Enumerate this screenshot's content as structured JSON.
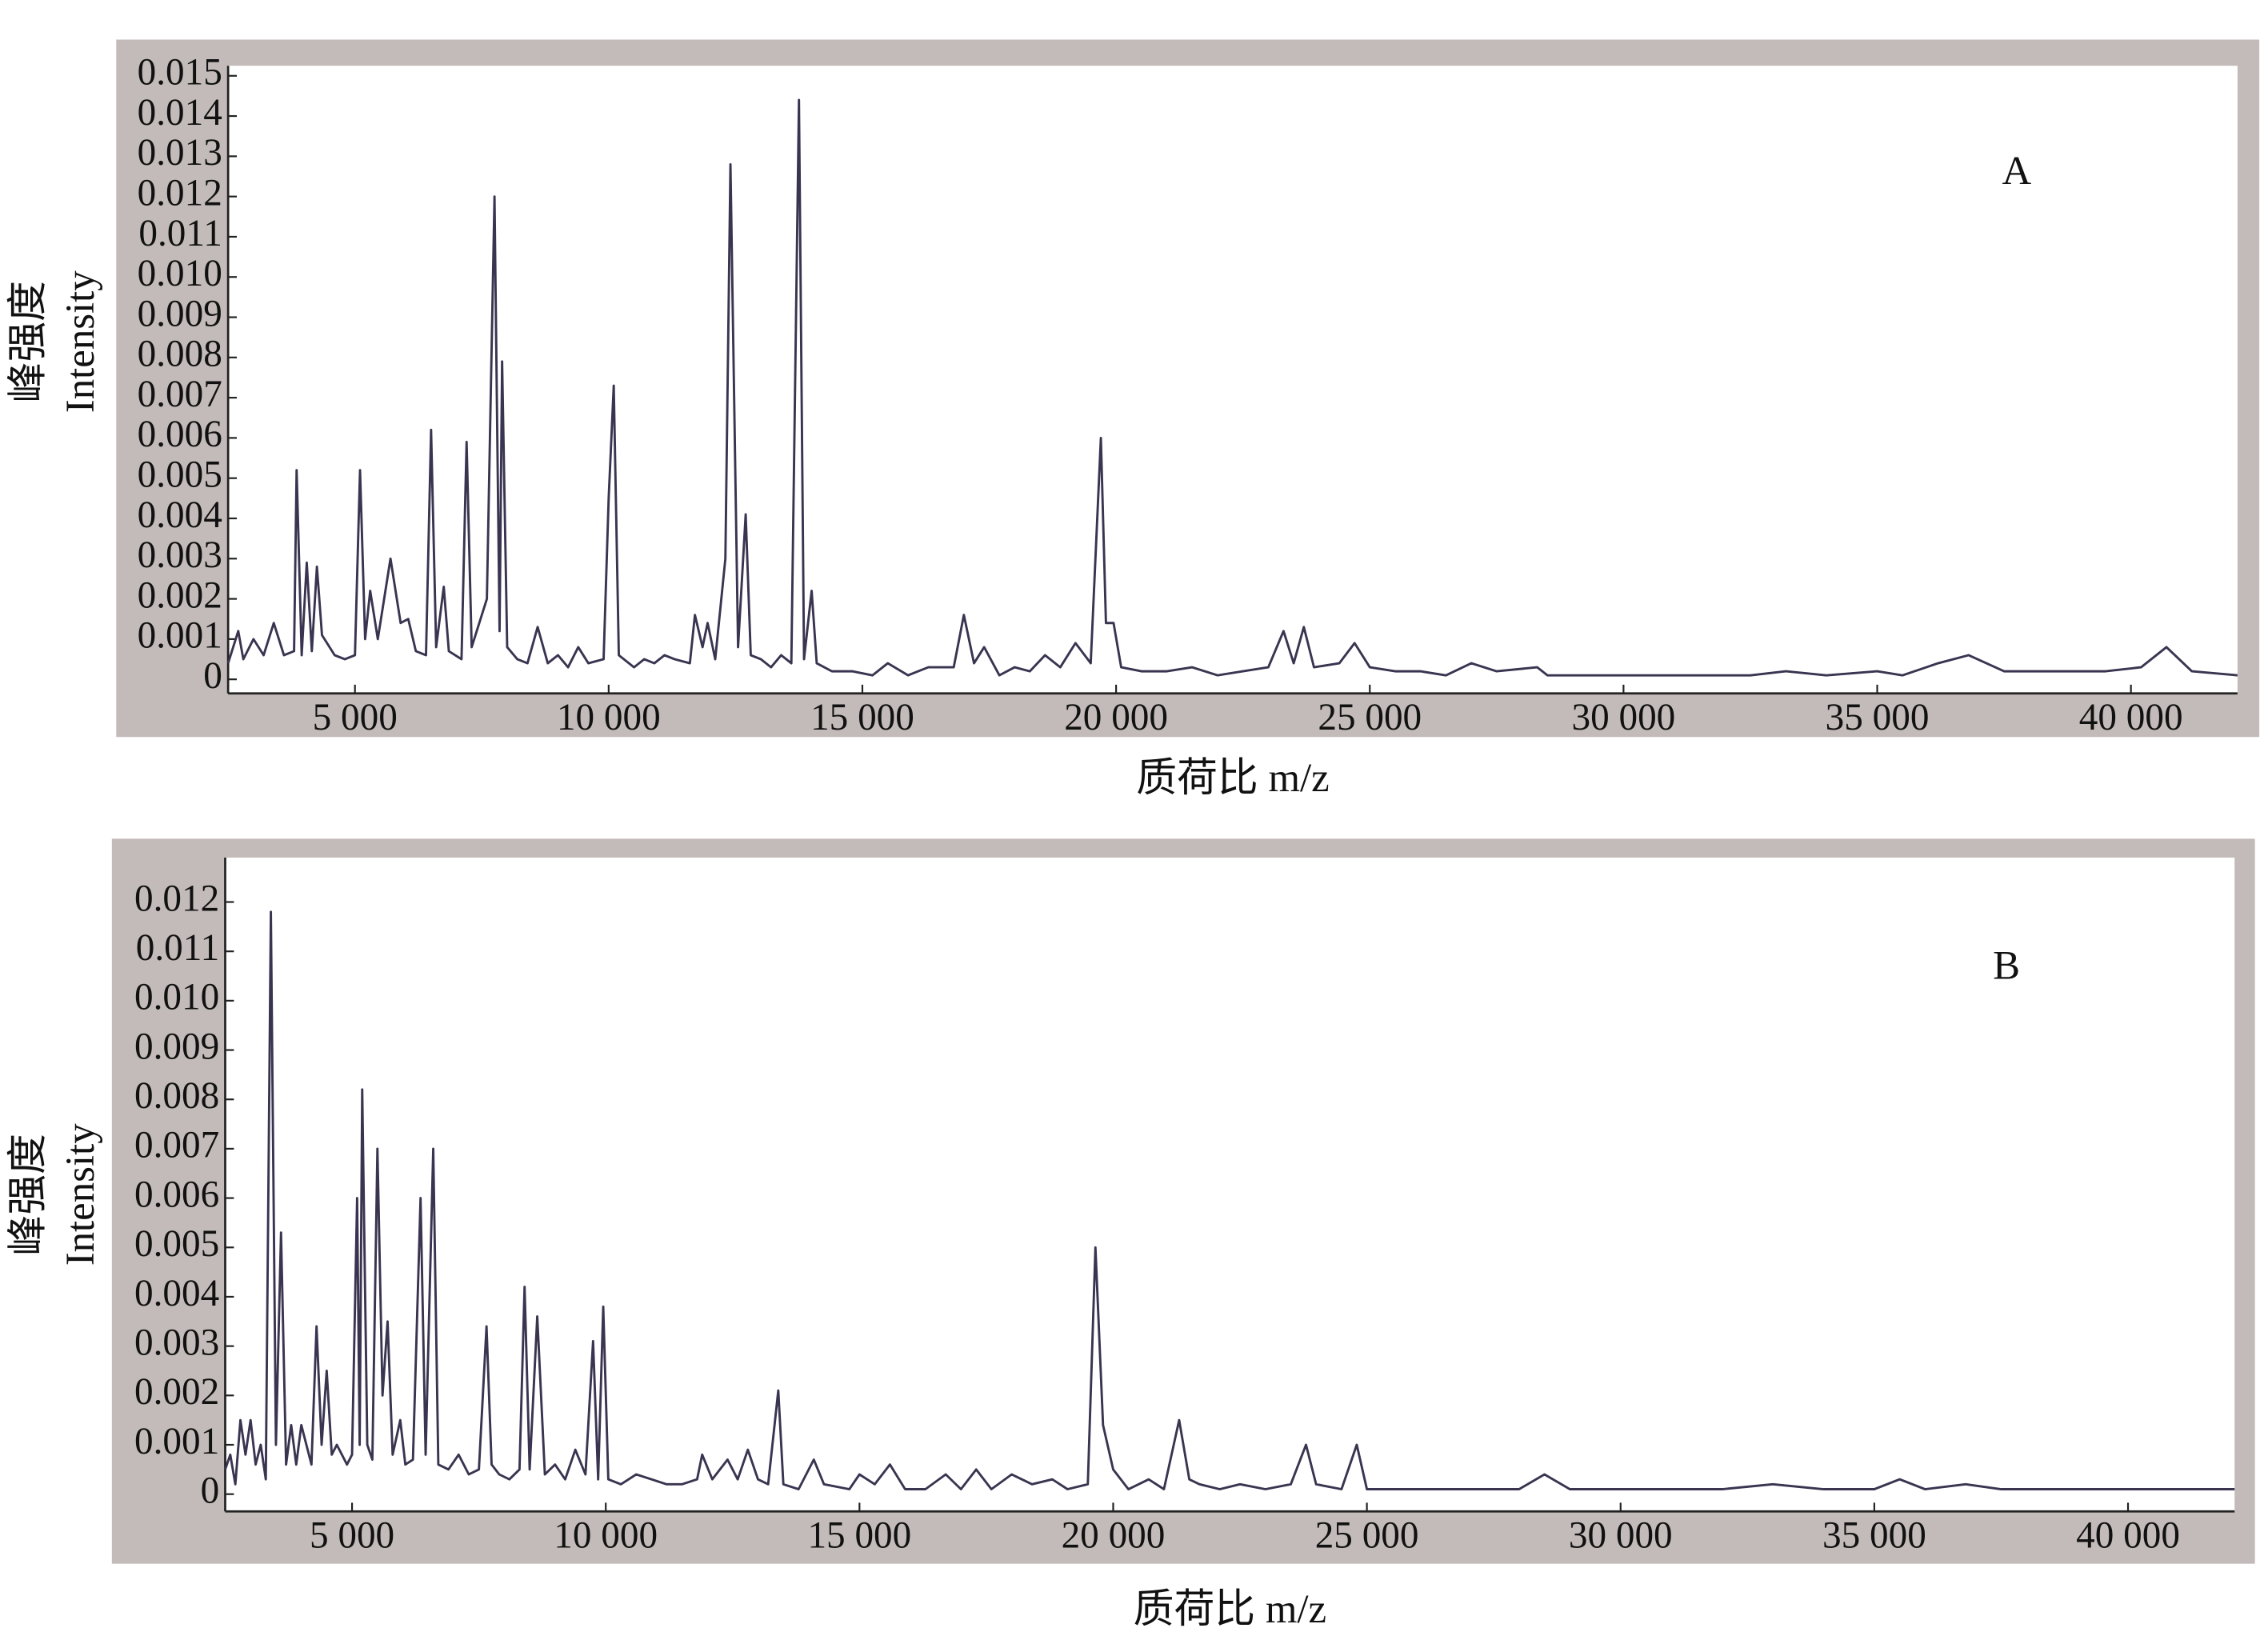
{
  "chart_data": [
    {
      "type": "line",
      "panel_label": "A",
      "ylabel_cn": "峰强度",
      "ylabel": "Intensity",
      "xlabel": "质荷比 m/z",
      "color": "#3a3450",
      "xlim": [
        2500,
        42100
      ],
      "ylim": [
        -0.00035,
        0.01525
      ],
      "xticks": [
        {
          "value": 5000,
          "label": "5 000"
        },
        {
          "value": 10000,
          "label": "10 000"
        },
        {
          "value": 15000,
          "label": "15 000"
        },
        {
          "value": 20000,
          "label": "20 000"
        },
        {
          "value": 25000,
          "label": "25 000"
        },
        {
          "value": 30000,
          "label": "30 000"
        },
        {
          "value": 35000,
          "label": "35 000"
        },
        {
          "value": 40000,
          "label": "40 000"
        }
      ],
      "yticks": [
        0,
        0.001,
        0.002,
        0.003,
        0.004,
        0.005,
        0.006,
        0.007,
        0.008,
        0.009,
        {
          "value": 0.01,
          "label": "0.010"
        },
        0.011,
        0.012,
        0.013,
        0.014,
        0.015
      ],
      "x": [
        2500,
        2700,
        2800,
        3000,
        3200,
        3400,
        3600,
        3800,
        3850,
        3950,
        4050,
        4150,
        4250,
        4350,
        4600,
        4800,
        5000,
        5100,
        5200,
        5300,
        5450,
        5700,
        5900,
        6050,
        6200,
        6400,
        6500,
        6600,
        6750,
        6850,
        7100,
        7200,
        7300,
        7600,
        7750,
        7850,
        7900,
        8000,
        8200,
        8400,
        8600,
        8800,
        9000,
        9200,
        9400,
        9600,
        9900,
        10000,
        10100,
        10200,
        10500,
        10700,
        10900,
        11100,
        11300,
        11600,
        11700,
        11850,
        11950,
        12100,
        12300,
        12400,
        12550,
        12700,
        12800,
        13000,
        13200,
        13400,
        13600,
        13750,
        13850,
        14000,
        14100,
        14400,
        14800,
        15200,
        15500,
        15900,
        16300,
        16800,
        17000,
        17200,
        17400,
        17700,
        18000,
        18300,
        18600,
        18900,
        19200,
        19500,
        19700,
        19800,
        19950,
        20100,
        20500,
        21000,
        21500,
        22000,
        22500,
        23000,
        23300,
        23500,
        23700,
        23900,
        24400,
        24700,
        25000,
        25500,
        26000,
        26500,
        27000,
        27500,
        28300,
        28500,
        29500,
        30500,
        31500,
        32500,
        33200,
        34000,
        35000,
        35500,
        36200,
        36800,
        37500,
        38500,
        39500,
        40200,
        40700,
        41200,
        42100
      ],
      "values": [
        0.0004,
        0.0012,
        0.0005,
        0.001,
        0.0006,
        0.0014,
        0.0006,
        0.0007,
        0.0052,
        0.0006,
        0.0029,
        0.0007,
        0.0028,
        0.0011,
        0.0006,
        0.0005,
        0.0006,
        0.0052,
        0.001,
        0.0022,
        0.001,
        0.003,
        0.0014,
        0.0015,
        0.0007,
        0.0006,
        0.0062,
        0.0008,
        0.0023,
        0.0007,
        0.0005,
        0.0059,
        0.0008,
        0.002,
        0.012,
        0.0012,
        0.0079,
        0.0008,
        0.0005,
        0.0004,
        0.0013,
        0.0004,
        0.0006,
        0.0003,
        0.0008,
        0.0004,
        0.0005,
        0.0045,
        0.0073,
        0.0006,
        0.0003,
        0.0005,
        0.0004,
        0.0006,
        0.0005,
        0.0004,
        0.0016,
        0.0008,
        0.0014,
        0.0005,
        0.003,
        0.0128,
        0.0008,
        0.0041,
        0.0006,
        0.0005,
        0.0003,
        0.0006,
        0.0004,
        0.0144,
        0.0005,
        0.0022,
        0.0004,
        0.0002,
        0.0002,
        0.0001,
        0.0004,
        0.0001,
        0.0003,
        0.0003,
        0.0016,
        0.0004,
        0.0008,
        0.0001,
        0.0003,
        0.0002,
        0.0006,
        0.0003,
        0.0009,
        0.0004,
        0.006,
        0.0014,
        0.0014,
        0.0003,
        0.0002,
        0.0002,
        0.0003,
        0.0001,
        0.0002,
        0.0003,
        0.0012,
        0.0004,
        0.0013,
        0.0003,
        0.0004,
        0.0009,
        0.0003,
        0.0002,
        0.0002,
        0.0001,
        0.0004,
        0.0002,
        0.0003,
        0.0001,
        0.0001,
        0.0001,
        0.0001,
        0.0001,
        0.0002,
        0.0001,
        0.0002,
        0.0001,
        0.0004,
        0.0006,
        0.0002,
        0.0002,
        0.0002,
        0.0003,
        0.0008,
        0.0002,
        0.0001
      ]
    },
    {
      "type": "line",
      "panel_label": "B",
      "ylabel_cn": "峰强度",
      "ylabel": "Intensity",
      "xlabel": "质荷比 m/z",
      "color": "#3a3450",
      "xlim": [
        2500,
        42100
      ],
      "ylim": [
        -0.00035,
        0.0129
      ],
      "xticks": [
        {
          "value": 5000,
          "label": "5 000"
        },
        {
          "value": 10000,
          "label": "10 000"
        },
        {
          "value": 15000,
          "label": "15 000"
        },
        {
          "value": 20000,
          "label": "20 000"
        },
        {
          "value": 25000,
          "label": "25 000"
        },
        {
          "value": 30000,
          "label": "30 000"
        },
        {
          "value": 35000,
          "label": "35 000"
        },
        {
          "value": 40000,
          "label": "40 000"
        }
      ],
      "yticks": [
        0,
        0.001,
        0.002,
        0.003,
        0.004,
        0.005,
        0.006,
        0.007,
        0.008,
        0.009,
        {
          "value": 0.01,
          "label": "0.010"
        },
        0.011,
        0.012
      ],
      "x": [
        2500,
        2600,
        2700,
        2800,
        2900,
        3000,
        3100,
        3200,
        3300,
        3400,
        3500,
        3600,
        3700,
        3800,
        3900,
        4000,
        4200,
        4300,
        4400,
        4500,
        4600,
        4700,
        4900,
        5000,
        5100,
        5150,
        5200,
        5300,
        5400,
        5500,
        5600,
        5700,
        5800,
        5950,
        6050,
        6200,
        6350,
        6450,
        6600,
        6700,
        6900,
        7100,
        7300,
        7500,
        7650,
        7750,
        7900,
        8100,
        8300,
        8400,
        8500,
        8650,
        8800,
        9000,
        9200,
        9400,
        9600,
        9750,
        9850,
        9950,
        10050,
        10300,
        10600,
        10900,
        11200,
        11500,
        11800,
        11900,
        12100,
        12400,
        12600,
        12800,
        13000,
        13200,
        13400,
        13500,
        13800,
        14100,
        14300,
        14800,
        15000,
        15300,
        15600,
        15900,
        16300,
        16700,
        17000,
        17300,
        17600,
        18000,
        18400,
        18800,
        19100,
        19500,
        19650,
        19800,
        20000,
        20300,
        20700,
        21000,
        21300,
        21500,
        21700,
        22100,
        22500,
        23000,
        23500,
        23800,
        24000,
        24500,
        24800,
        25000,
        26000,
        27000,
        28000,
        28500,
        29000,
        30000,
        31000,
        32000,
        33000,
        34000,
        35000,
        35500,
        36000,
        36800,
        37500,
        38500,
        39500,
        40500,
        42100
      ],
      "values": [
        0.0005,
        0.0008,
        0.0002,
        0.0015,
        0.0008,
        0.0015,
        0.0006,
        0.001,
        0.0003,
        0.0118,
        0.001,
        0.0053,
        0.0006,
        0.0014,
        0.0006,
        0.0014,
        0.0006,
        0.0034,
        0.001,
        0.0025,
        0.0008,
        0.001,
        0.0006,
        0.0008,
        0.006,
        0.001,
        0.0082,
        0.001,
        0.0007,
        0.007,
        0.002,
        0.0035,
        0.0008,
        0.0015,
        0.0006,
        0.0007,
        0.006,
        0.0008,
        0.007,
        0.0006,
        0.0005,
        0.0008,
        0.0004,
        0.0005,
        0.0034,
        0.0006,
        0.0004,
        0.0003,
        0.0005,
        0.0042,
        0.0005,
        0.0036,
        0.0004,
        0.0006,
        0.0003,
        0.0009,
        0.0004,
        0.0031,
        0.0003,
        0.0038,
        0.0003,
        0.0002,
        0.0004,
        0.0003,
        0.0002,
        0.0002,
        0.0003,
        0.0008,
        0.0003,
        0.0007,
        0.0003,
        0.0009,
        0.0003,
        0.0002,
        0.0021,
        0.0002,
        0.0001,
        0.0007,
        0.0002,
        0.0001,
        0.0004,
        0.0002,
        0.0006,
        0.0001,
        0.0001,
        0.0004,
        0.0001,
        0.0005,
        0.0001,
        0.0004,
        0.0002,
        0.0003,
        0.0001,
        0.0002,
        0.005,
        0.0014,
        0.0005,
        0.0001,
        0.0003,
        0.0001,
        0.0015,
        0.0003,
        0.0002,
        0.0001,
        0.0002,
        0.0001,
        0.0002,
        0.001,
        0.0002,
        0.0001,
        0.001,
        0.0001,
        0.0001,
        0.0001,
        0.0001,
        0.0004,
        0.0001,
        0.0001,
        0.0001,
        0.0001,
        0.0002,
        0.0001,
        0.0001,
        0.0003,
        0.0001,
        0.0002,
        0.0001,
        0.0001,
        0.0001,
        0.0001,
        0.0001
      ]
    }
  ]
}
